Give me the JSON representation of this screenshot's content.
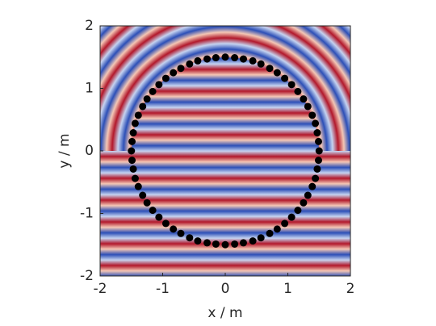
{
  "chart_data": {
    "type": "scatter",
    "xlabel": "x / m",
    "ylabel": "y / m",
    "color": "#000000",
    "xlim": [
      -2,
      2
    ],
    "ylim": [
      -2,
      2
    ],
    "xticks": [
      -2,
      -1,
      0,
      1,
      2
    ],
    "yticks": [
      -2,
      -1,
      0,
      1,
      2
    ],
    "x": [
      1.5,
      1.49,
      1.47,
      1.44,
      1.39,
      1.32,
      1.25,
      1.16,
      1.06,
      0.95,
      0.83,
      0.71,
      0.57,
      0.44,
      0.29,
      0.15,
      0,
      -0.15,
      -0.29,
      -0.44,
      -0.57,
      -0.71,
      -0.83,
      -0.95,
      -1.06,
      -1.16,
      -1.25,
      -1.32,
      -1.39,
      -1.44,
      -1.47,
      -1.49,
      -1.5,
      -1.49,
      -1.47,
      -1.44,
      -1.39,
      -1.32,
      -1.25,
      -1.16,
      -1.06,
      -0.95,
      -0.83,
      -0.71,
      -0.57,
      -0.44,
      -0.29,
      -0.15,
      0,
      0.15,
      0.29,
      0.44,
      0.57,
      0.71,
      0.83,
      0.95,
      1.06,
      1.16,
      1.25,
      1.32,
      1.39,
      1.44,
      1.47,
      1.49
    ],
    "y": [
      0,
      0.15,
      0.29,
      0.44,
      0.57,
      0.71,
      0.83,
      0.95,
      1.06,
      1.16,
      1.25,
      1.32,
      1.39,
      1.44,
      1.47,
      1.49,
      1.5,
      1.49,
      1.47,
      1.44,
      1.39,
      1.32,
      1.25,
      1.16,
      1.06,
      0.95,
      0.83,
      0.71,
      0.57,
      0.44,
      0.29,
      0.15,
      0,
      -0.15,
      -0.29,
      -0.44,
      -0.57,
      -0.71,
      -0.83,
      -0.95,
      -1.06,
      -1.16,
      -1.25,
      -1.32,
      -1.39,
      -1.44,
      -1.47,
      -1.49,
      -1.5,
      -1.49,
      -1.47,
      -1.44,
      -1.39,
      -1.32,
      -1.25,
      -1.16,
      -1.06,
      -0.95,
      -0.83,
      -0.71,
      -0.57,
      -0.44,
      -0.29,
      -0.15
    ]
  }
}
